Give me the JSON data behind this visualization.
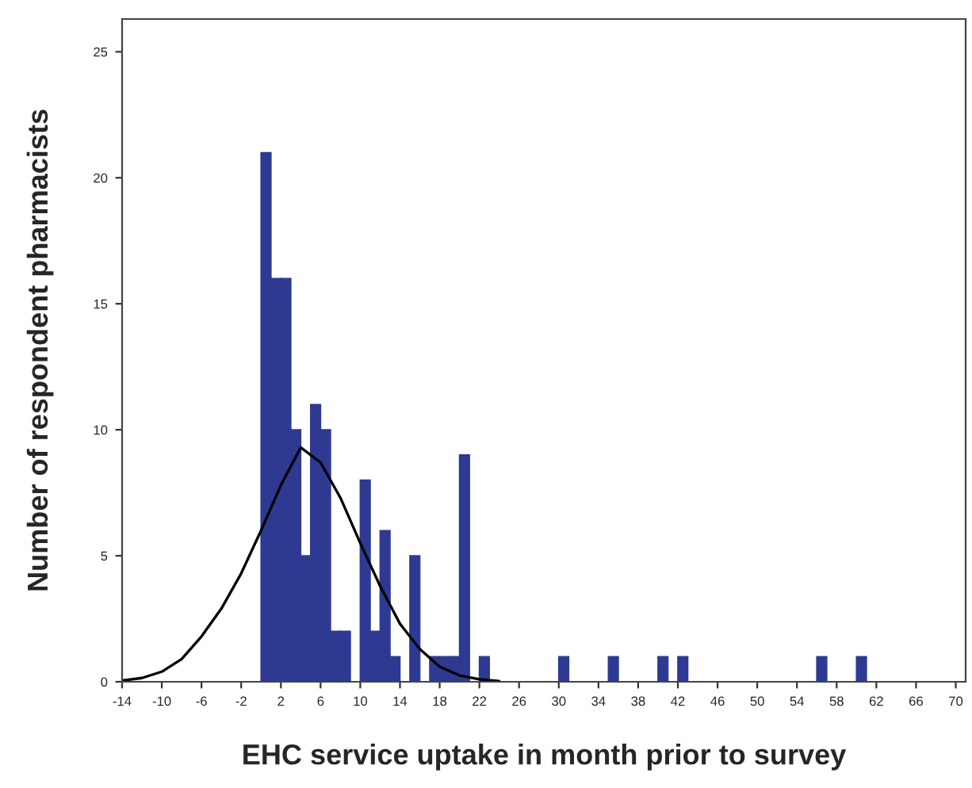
{
  "chart_data": {
    "type": "histogram",
    "xlabel": "EHC service uptake in month prior to survey",
    "ylabel": "Number of respondent pharmacists",
    "bins": [
      0,
      1,
      2,
      3,
      4,
      5,
      6,
      7,
      8,
      9,
      10,
      11,
      12,
      13,
      14,
      15,
      16,
      17,
      18,
      19,
      20,
      21,
      22,
      23,
      24,
      25,
      26,
      27,
      28,
      29,
      30,
      31,
      32,
      33,
      34,
      35,
      36,
      37,
      38,
      39,
      40,
      41,
      42,
      43,
      44,
      45,
      46,
      47,
      48,
      49,
      50,
      51,
      52,
      53,
      54,
      55,
      56,
      57,
      58,
      59,
      60,
      61
    ],
    "values": [
      21,
      16,
      16,
      10,
      5,
      11,
      10,
      2,
      2,
      0,
      8,
      2,
      6,
      1,
      0,
      5,
      0,
      1,
      1,
      1,
      9,
      0,
      1,
      0,
      0,
      0,
      0,
      0,
      0,
      0,
      1,
      0,
      0,
      0,
      0,
      1,
      0,
      0,
      0,
      0,
      1,
      0,
      1,
      0,
      0,
      0,
      0,
      0,
      0,
      0,
      0,
      0,
      0,
      0,
      0,
      0,
      1,
      0,
      0,
      0,
      1
    ],
    "color": "#2e3a92",
    "series": [
      {
        "type": "line",
        "color": "#000000",
        "x": [
          -14,
          -12,
          -10,
          -8,
          -6,
          -4,
          -2,
          0,
          2,
          4,
          6,
          8,
          10,
          12,
          14,
          16,
          18,
          20,
          22,
          24
        ],
        "values": [
          0.05,
          0.15,
          0.4,
          0.9,
          1.8,
          2.9,
          4.3,
          6.0,
          7.8,
          9.3,
          8.7,
          7.3,
          5.5,
          3.8,
          2.3,
          1.3,
          0.6,
          0.25,
          0.1,
          0.03
        ]
      }
    ],
    "xlim": [
      -14,
      71
    ],
    "xticks": [
      -14,
      -10,
      -6,
      -2,
      2,
      6,
      10,
      14,
      18,
      22,
      26,
      30,
      34,
      38,
      42,
      46,
      50,
      54,
      58,
      62,
      66,
      70
    ],
    "ylim": [
      0,
      26.3
    ],
    "yticks": [
      0,
      5,
      10,
      15,
      20,
      25
    ],
    "grid": false,
    "legend": false
  }
}
